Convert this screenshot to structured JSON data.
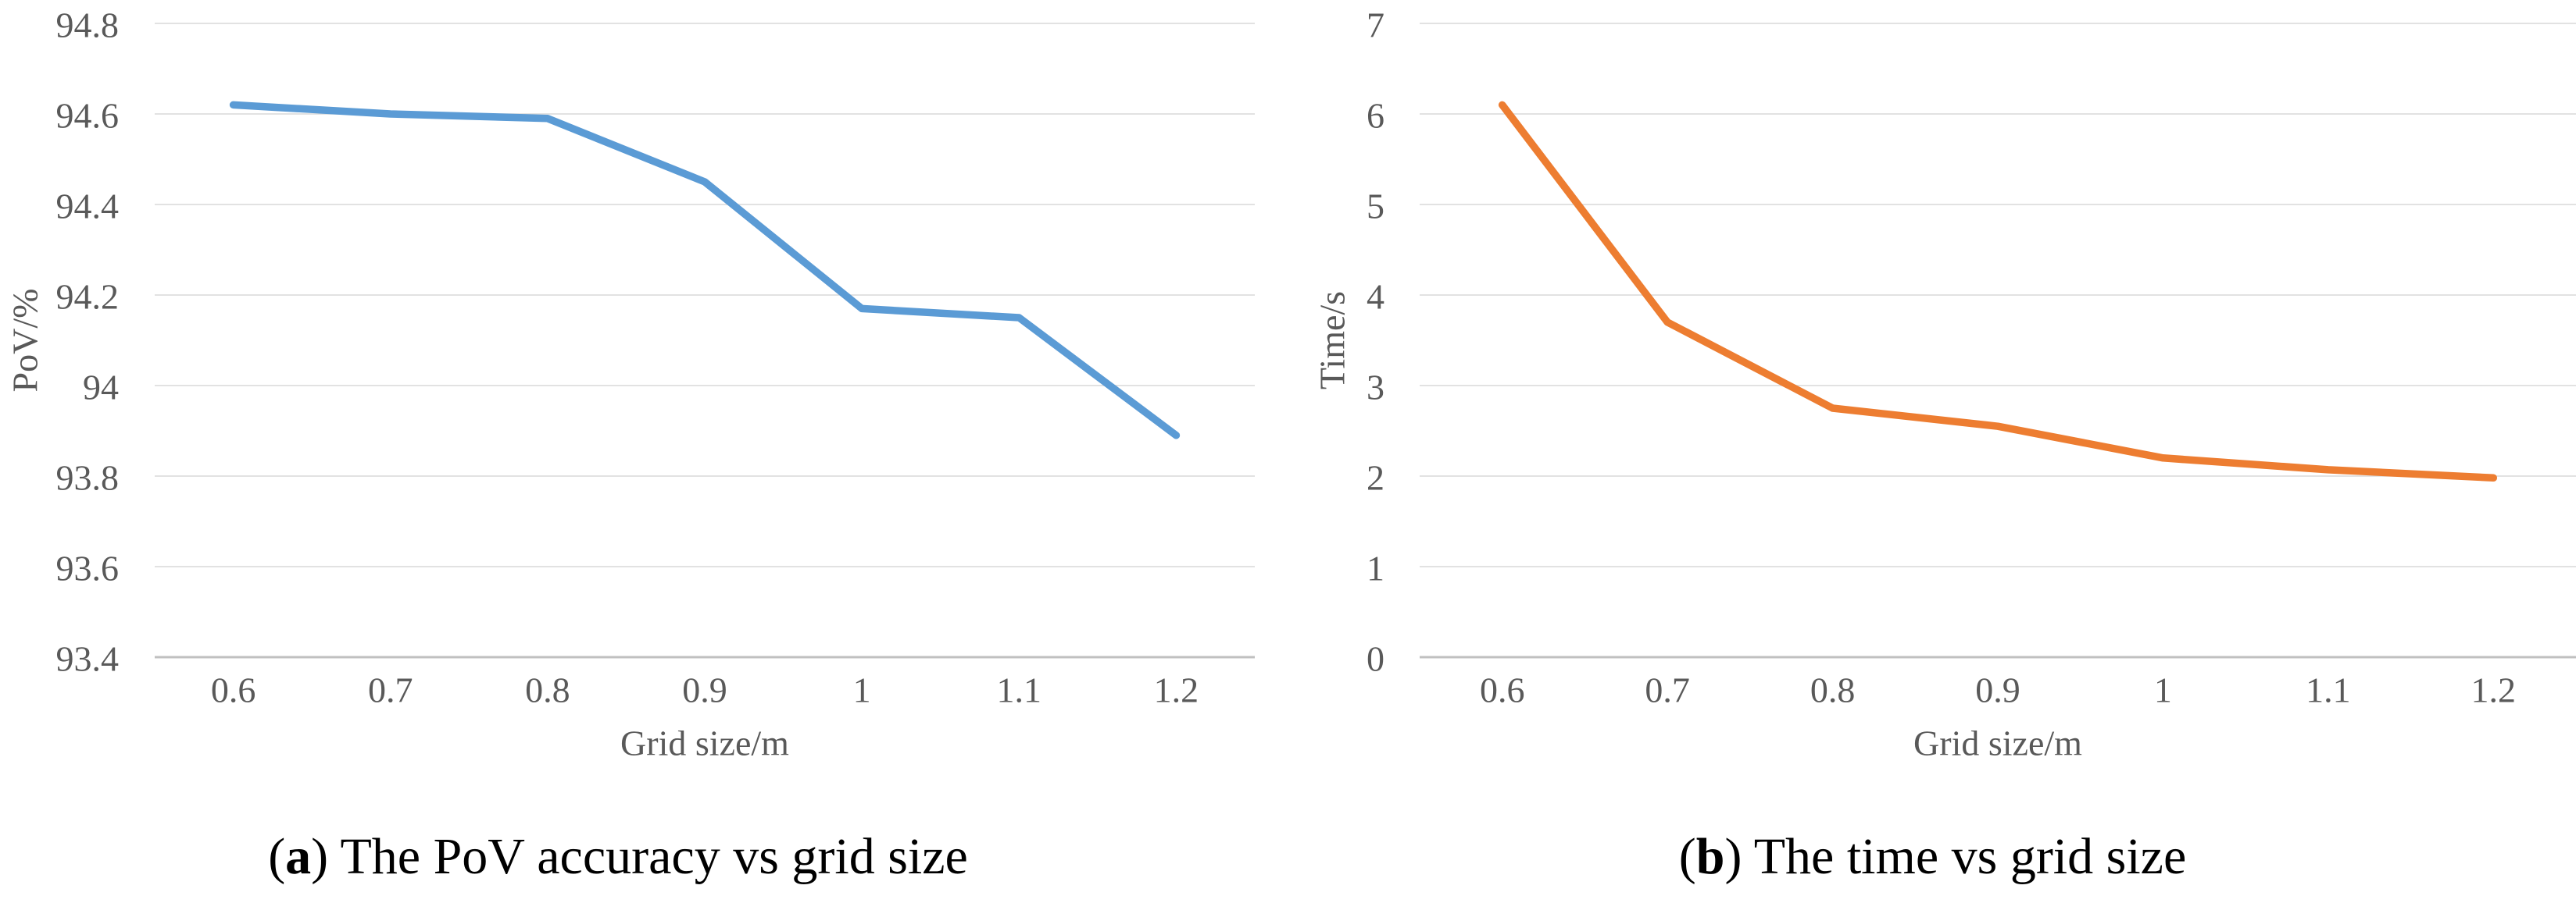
{
  "figure": {
    "background": "#ffffff",
    "text_color": "#595959",
    "grid_color": "#d9d9d9",
    "axis_line_color": "#c0c0c0"
  },
  "captions": {
    "a": {
      "open": "(",
      "index": "a",
      "close": ")",
      "text": " The PoV accuracy vs grid size"
    },
    "b": {
      "open": "(",
      "index": "b",
      "close": ")",
      "text": " The time vs grid size"
    }
  },
  "chart_data": [
    {
      "id": "pov",
      "type": "line",
      "title": "",
      "caption": "(a) The PoV accuracy vs grid size",
      "categories": [
        "0.6",
        "0.7",
        "0.8",
        "0.9",
        "1",
        "1.1",
        "1.2"
      ],
      "values": [
        94.62,
        94.6,
        94.59,
        94.45,
        94.17,
        94.15,
        93.89
      ],
      "xlabel": "Grid size/m",
      "ylabel": "PoV/%",
      "ylim": [
        93.4,
        94.8
      ],
      "ytick_labels": [
        "93.4",
        "93.6",
        "93.8",
        "94",
        "94.2",
        "94.4",
        "94.6",
        "94.8"
      ],
      "line_color": "#5b9bd5",
      "grid": true,
      "legend": "none"
    },
    {
      "id": "time",
      "type": "line",
      "title": "",
      "caption": "(b) The time vs grid size",
      "categories": [
        "0.6",
        "0.7",
        "0.8",
        "0.9",
        "1",
        "1.1",
        "1.2"
      ],
      "values": [
        6.1,
        3.7,
        2.75,
        2.55,
        2.2,
        2.07,
        1.98
      ],
      "xlabel": "Grid size/m",
      "ylabel": "Time/s",
      "ylim": [
        0,
        7
      ],
      "ytick_labels": [
        "0",
        "1",
        "2",
        "3",
        "4",
        "5",
        "6",
        "7"
      ],
      "line_color": "#ed7d31",
      "grid": true,
      "legend": "none"
    }
  ]
}
